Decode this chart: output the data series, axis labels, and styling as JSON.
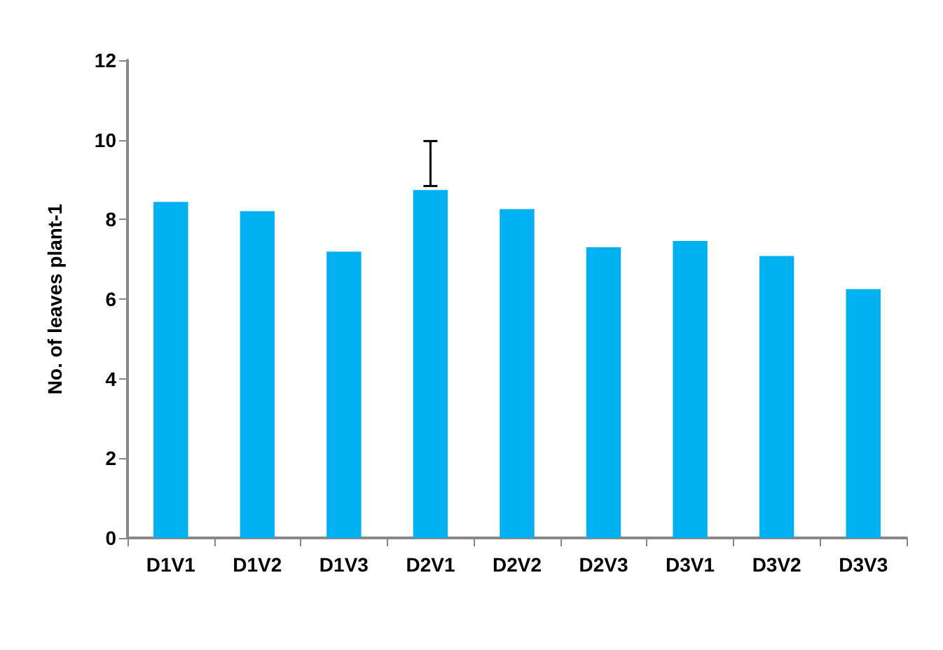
{
  "chart_data": {
    "type": "bar",
    "ylabel": "No. of leaves plant-1",
    "categories": [
      "D1V1",
      "D1V2",
      "D1V3",
      "D2V1",
      "D2V2",
      "D2V3",
      "D3V1",
      "D3V2",
      "D3V3"
    ],
    "values": [
      8.44,
      8.21,
      7.19,
      8.74,
      8.26,
      7.3,
      7.46,
      7.08,
      6.25
    ],
    "errors": [
      null,
      null,
      null,
      [
        8.84,
        9.97
      ],
      null,
      null,
      null,
      null,
      null
    ],
    "color": "#00b0f0",
    "ylim": [
      0,
      12
    ],
    "yticks": [
      0,
      2,
      4,
      6,
      8,
      10,
      12
    ],
    "grid": false
  }
}
